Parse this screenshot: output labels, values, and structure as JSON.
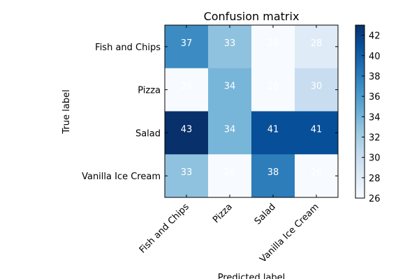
{
  "chart_data": {
    "type": "heatmap",
    "title": "Confusion matrix",
    "xlabel": "Predicted label",
    "ylabel": "True label",
    "x_categories": [
      "Fish and Chips",
      "Pizza",
      "Salad",
      "Vanilla Ice Cream"
    ],
    "y_categories": [
      "Fish and Chips",
      "Pizza",
      "Salad",
      "Vanilla Ice Cream"
    ],
    "values": [
      [
        37,
        33,
        26,
        28
      ],
      [
        26,
        34,
        26,
        30
      ],
      [
        43,
        34,
        41,
        41
      ],
      [
        33,
        26,
        38,
        26
      ]
    ],
    "colormap": "Blues",
    "vmin": 26,
    "vmax": 43,
    "colorbar_ticks": [
      26,
      28,
      30,
      32,
      34,
      36,
      38,
      40,
      42
    ],
    "cell_text_color": "#ffffff",
    "colors": {
      "low": "#f7fbff",
      "high": "#08306b"
    }
  }
}
